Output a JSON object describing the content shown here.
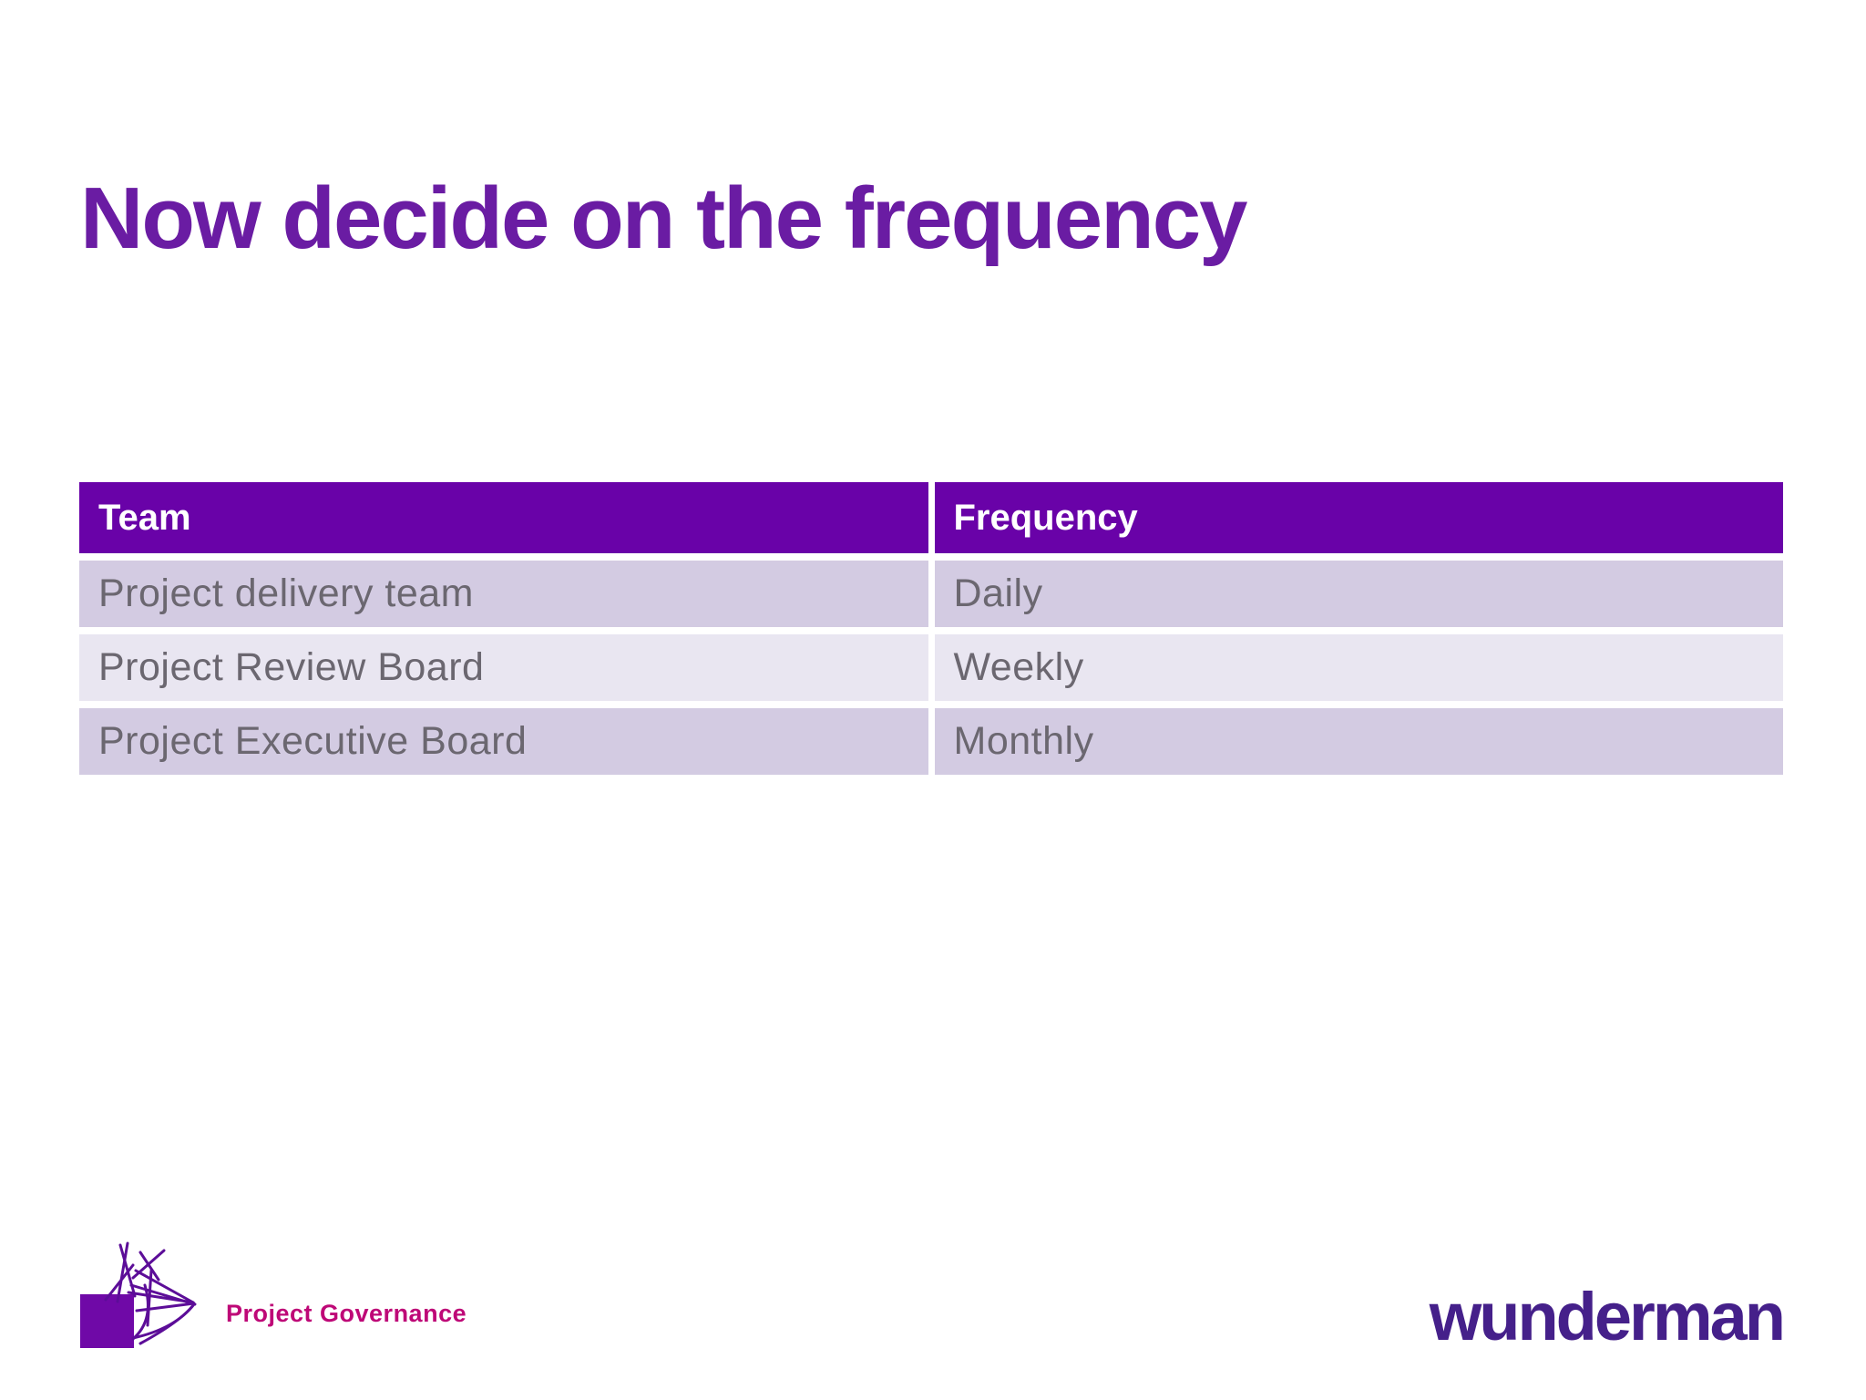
{
  "title": "Now decide on the frequency",
  "table": {
    "columns": [
      "Team",
      "Frequency"
    ],
    "rows": [
      [
        "Project delivery team",
        "Daily"
      ],
      [
        "Project Review Board",
        "Weekly"
      ],
      [
        "Project Executive Board",
        "Monthly"
      ]
    ]
  },
  "footer": {
    "section_label": "Project Governance",
    "brand": "wunderman",
    "logo_icon": "scribble-square-logo"
  },
  "colors": {
    "title_text": "#6A1CA3",
    "table_header_bg": "#6902A8",
    "table_header_text": "#FFFFFF",
    "table_row_odd_bg": "#D3CBE2",
    "table_row_even_bg": "#E9E6F1",
    "table_row_text": "#6B6770",
    "section_label_text": "#BE0877",
    "brand_text": "#45208A",
    "logo_purple": "#6F09A7"
  }
}
